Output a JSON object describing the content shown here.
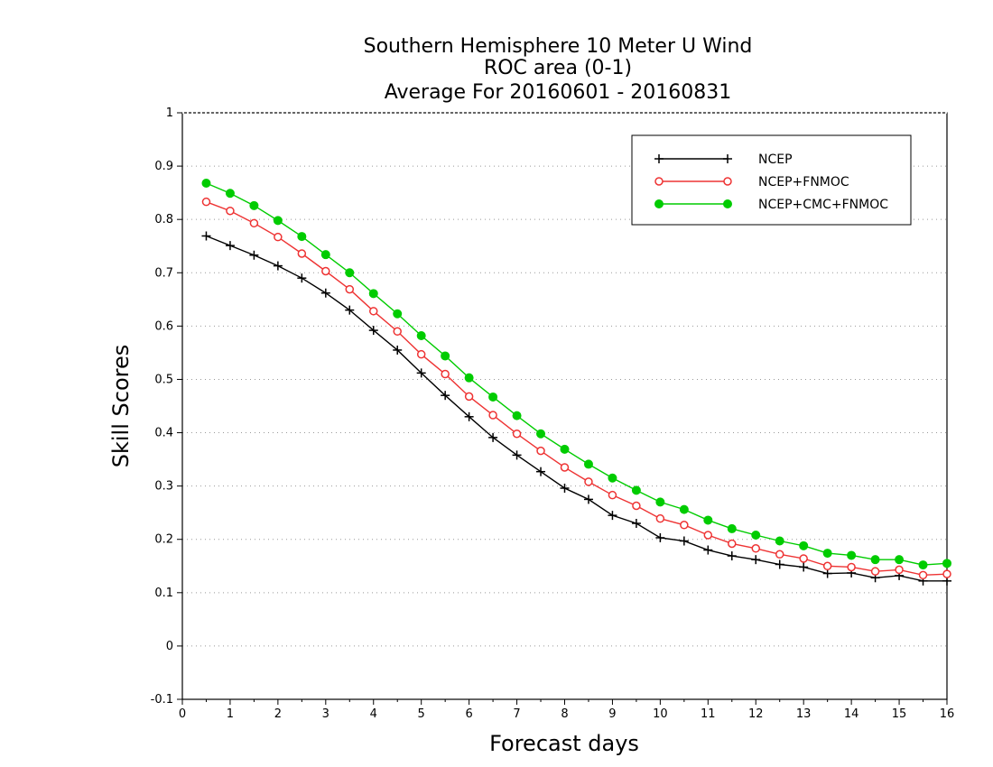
{
  "chart_data": {
    "type": "line",
    "title_lines": [
      "Southern Hemisphere 10 Meter U Wind",
      "ROC area (0-1)",
      "Average For 20160601 - 20160831"
    ],
    "xlabel": "Forecast days",
    "ylabel": "Skill Scores",
    "xlim": [
      0,
      16
    ],
    "ylim": [
      -0.1,
      1
    ],
    "x_ticks": [
      "0",
      "1",
      "2",
      "3",
      "4",
      "5",
      "6",
      "7",
      "8",
      "9",
      "10",
      "11",
      "12",
      "13",
      "14",
      "15",
      "16"
    ],
    "y_ticks": [
      "-0.1",
      "0",
      "0.1",
      "0.2",
      "0.3",
      "0.4",
      "0.5",
      "0.6",
      "0.7",
      "0.8",
      "0.9",
      "1"
    ],
    "grid": "horizontal dotted",
    "legend_position": "top-right",
    "x": [
      0.5,
      1,
      1.5,
      2,
      2.5,
      3,
      3.5,
      4,
      4.5,
      5,
      5.5,
      6,
      6.5,
      7,
      7.5,
      8,
      8.5,
      9,
      9.5,
      10,
      10.5,
      11,
      11.5,
      12,
      12.5,
      13,
      13.5,
      14,
      14.5,
      15,
      15.5,
      16
    ],
    "series": [
      {
        "name": "NCEP",
        "color": "#000000",
        "marker": "plus",
        "values": [
          0.769,
          0.751,
          0.733,
          0.713,
          0.69,
          0.662,
          0.63,
          0.592,
          0.555,
          0.512,
          0.47,
          0.43,
          0.391,
          0.358,
          0.327,
          0.296,
          0.275,
          0.245,
          0.23,
          0.203,
          0.197,
          0.18,
          0.169,
          0.162,
          0.153,
          0.148,
          0.136,
          0.137,
          0.128,
          0.132,
          0.122,
          0.122
        ]
      },
      {
        "name": "NCEP+FNMOC",
        "color": "#ee3333",
        "marker": "open-circle",
        "values": [
          0.833,
          0.816,
          0.793,
          0.767,
          0.736,
          0.703,
          0.669,
          0.628,
          0.59,
          0.547,
          0.51,
          0.468,
          0.433,
          0.398,
          0.366,
          0.335,
          0.308,
          0.283,
          0.263,
          0.239,
          0.227,
          0.208,
          0.192,
          0.183,
          0.172,
          0.164,
          0.15,
          0.148,
          0.14,
          0.143,
          0.133,
          0.135
        ]
      },
      {
        "name": "NCEP+CMC+FNMOC",
        "color": "#00cc00",
        "marker": "filled-circle",
        "values": [
          0.868,
          0.849,
          0.826,
          0.798,
          0.768,
          0.734,
          0.7,
          0.661,
          0.623,
          0.582,
          0.544,
          0.503,
          0.467,
          0.432,
          0.398,
          0.369,
          0.341,
          0.315,
          0.292,
          0.27,
          0.256,
          0.236,
          0.22,
          0.208,
          0.197,
          0.188,
          0.174,
          0.17,
          0.162,
          0.162,
          0.152,
          0.155
        ]
      }
    ]
  }
}
